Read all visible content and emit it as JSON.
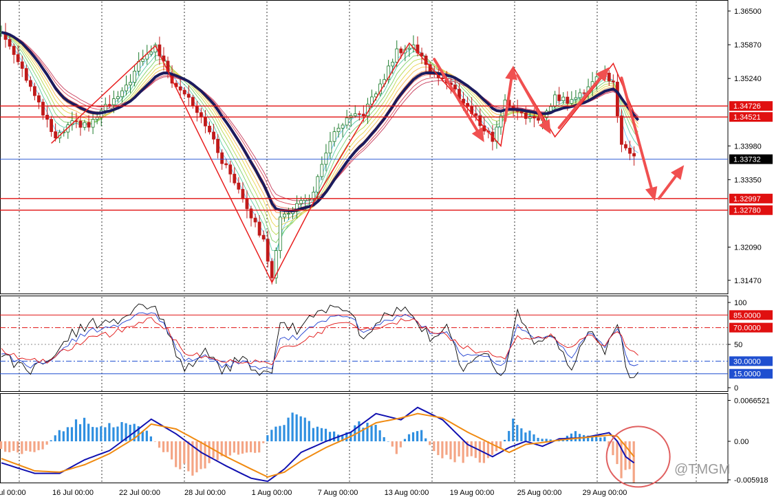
{
  "watermark": "@TMGM",
  "colors": {
    "background": "#ffffff",
    "grid": "#000000",
    "level_line": "#e01010",
    "current_price_line": "#1f4fd0",
    "bull_candle": "#1a7a2a",
    "bear_candle": "#c01a1a",
    "slow_ma": "#1b1b5e",
    "arrow": "#f05050",
    "stoch_main": "#000000",
    "stoch_blue": "#1f3fd0",
    "stoch_red": "#e01010",
    "macd_pos": "#2f8fe0",
    "macd_neg": "#f4a585",
    "macd_line": "#1010b0",
    "signal_line": "#f08a10",
    "circle": "#e06060",
    "badge_red": "#e01010",
    "badge_blue": "#1f4fd0",
    "badge_black": "#000000"
  },
  "chart_data": [
    {
      "panel": "price",
      "type": "candlestick",
      "x_ticks": [
        "ul 00:00",
        "16 Jul 00:00",
        "22 Jul 00:00",
        "28 Jul 00:00",
        "1 Aug 00:00",
        "7 Aug 00:00",
        "13 Aug 00:00",
        "19 Aug 00:00",
        "25 Aug 00:00",
        "29 Aug 00:00"
      ],
      "y_ticks": [
        1.365,
        1.3587,
        1.3524,
        1.3398,
        1.3335,
        1.3209,
        1.3147
      ],
      "y_tick_labels": [
        "1.36500",
        "1.35870",
        "1.35240",
        "1.33980",
        "1.33350",
        "1.32090",
        "1.31470"
      ],
      "ylim": [
        1.3121,
        1.3668
      ],
      "levels": [
        {
          "label": "1.34726",
          "value": 1.34726,
          "style": "badge_red"
        },
        {
          "label": "1.34521",
          "value": 1.34521,
          "style": "badge_red"
        },
        {
          "label": "1.32997",
          "value": 1.32997,
          "style": "badge_red"
        },
        {
          "label": "1.32780",
          "value": 1.3278,
          "style": "badge_red"
        }
      ],
      "current_price": {
        "label": "1.33732",
        "value": 1.33732
      },
      "close_path": [
        [
          0,
          1.361
        ],
        [
          4,
          1.356
        ],
        [
          8,
          1.349
        ],
        [
          13,
          1.341
        ],
        [
          17,
          1.344
        ],
        [
          21,
          1.3435
        ],
        [
          25,
          1.347
        ],
        [
          29,
          1.3495
        ],
        [
          33,
          1.355
        ],
        [
          37,
          1.3585
        ],
        [
          41,
          1.352
        ],
        [
          45,
          1.349
        ],
        [
          49,
          1.344
        ],
        [
          53,
          1.337
        ],
        [
          57,
          1.332
        ],
        [
          61,
          1.325
        ],
        [
          63,
          1.322
        ],
        [
          65,
          1.3155
        ],
        [
          67,
          1.326
        ],
        [
          71,
          1.3288
        ],
        [
          75,
          1.331
        ],
        [
          79,
          1.341
        ],
        [
          83,
          1.3445
        ],
        [
          87,
          1.346
        ],
        [
          91,
          1.351
        ],
        [
          95,
          1.3575
        ],
        [
          99,
          1.3585
        ],
        [
          103,
          1.354
        ],
        [
          108,
          1.351
        ],
        [
          113,
          1.346
        ],
        [
          118,
          1.341
        ],
        [
          121,
          1.348
        ],
        [
          125,
          1.346
        ],
        [
          129,
          1.344
        ],
        [
          133,
          1.349
        ],
        [
          137,
          1.348
        ],
        [
          141,
          1.351
        ],
        [
          144,
          1.3535
        ],
        [
          147,
          1.352
        ],
        [
          149,
          1.3395
        ],
        [
          151,
          1.3385
        ]
      ],
      "zigzag": [
        [
          12,
          1.3403
        ],
        [
          37,
          1.3585
        ],
        [
          65,
          1.3143
        ],
        [
          75,
          1.3293
        ],
        [
          98,
          1.359
        ],
        [
          120,
          1.3398
        ],
        [
          123,
          1.3545
        ],
        [
          133,
          1.3415
        ],
        [
          147,
          1.3552
        ],
        [
          152,
          1.346
        ]
      ],
      "arrows": [
        {
          "from": [
            104,
            1.356
          ],
          "to": [
            116,
            1.3405
          ]
        },
        {
          "from": [
            121,
            1.3445
          ],
          "to": [
            123,
            1.3548
          ]
        },
        {
          "from": [
            124,
            1.353
          ],
          "to": [
            132,
            1.342
          ]
        },
        {
          "from": [
            134,
            1.3432
          ],
          "to": [
            146,
            1.3545
          ]
        },
        {
          "from": [
            149,
            1.3525
          ],
          "to": [
            157,
            1.3295
          ]
        },
        {
          "from": [
            158,
            1.33
          ],
          "to": [
            164,
            1.3362
          ]
        }
      ]
    },
    {
      "panel": "oscillator",
      "type": "line",
      "ylim": [
        0,
        100
      ],
      "y_tick_labels": [
        "100",
        "50",
        "0"
      ],
      "levels": [
        {
          "label": "85.0000",
          "value": 85,
          "style": "badge_red"
        },
        {
          "label": "70.0000",
          "value": 70,
          "style": "badge_red"
        },
        {
          "label": "30.0000",
          "value": 30,
          "style": "badge_blue"
        },
        {
          "label": "15.0000",
          "value": 15,
          "style": "badge_blue"
        }
      ],
      "series": [
        {
          "role": "stoch_main",
          "values": [
            [
              0,
              38
            ],
            [
              6,
              18
            ],
            [
              11,
              33
            ],
            [
              16,
              58
            ],
            [
              21,
              75
            ],
            [
              26,
              72
            ],
            [
              31,
              90
            ],
            [
              36,
              99
            ],
            [
              39,
              76
            ],
            [
              44,
              18
            ],
            [
              49,
              42
            ],
            [
              53,
              14
            ],
            [
              57,
              36
            ],
            [
              61,
              20
            ],
            [
              65,
              14
            ],
            [
              67,
              72
            ],
            [
              72,
              68
            ],
            [
              76,
              88
            ],
            [
              81,
              95
            ],
            [
              85,
              83
            ],
            [
              87,
              52
            ],
            [
              92,
              82
            ],
            [
              96,
              96
            ],
            [
              99,
              88
            ],
            [
              103,
              56
            ],
            [
              107,
              68
            ],
            [
              111,
              18
            ],
            [
              116,
              36
            ],
            [
              121,
              14
            ],
            [
              124,
              88
            ],
            [
              128,
              52
            ],
            [
              132,
              66
            ],
            [
              137,
              20
            ],
            [
              141,
              70
            ],
            [
              145,
              38
            ],
            [
              148,
              80
            ],
            [
              150,
              28
            ],
            [
              151,
              14
            ],
            [
              153,
              17
            ]
          ]
        },
        {
          "role": "stoch_blue",
          "values": [
            [
              0,
              40
            ],
            [
              6,
              24
            ],
            [
              11,
              30
            ],
            [
              16,
              50
            ],
            [
              21,
              66
            ],
            [
              26,
              68
            ],
            [
              31,
              82
            ],
            [
              36,
              90
            ],
            [
              39,
              74
            ],
            [
              44,
              30
            ],
            [
              49,
              36
            ],
            [
              53,
              22
            ],
            [
              57,
              30
            ],
            [
              61,
              24
            ],
            [
              65,
              20
            ],
            [
              67,
              55
            ],
            [
              72,
              60
            ],
            [
              76,
              75
            ],
            [
              81,
              85
            ],
            [
              85,
              80
            ],
            [
              87,
              62
            ],
            [
              92,
              76
            ],
            [
              96,
              86
            ],
            [
              99,
              84
            ],
            [
              103,
              64
            ],
            [
              107,
              62
            ],
            [
              111,
              36
            ],
            [
              116,
              34
            ],
            [
              121,
              26
            ],
            [
              124,
              72
            ],
            [
              128,
              58
            ],
            [
              132,
              62
            ],
            [
              137,
              34
            ],
            [
              141,
              66
            ],
            [
              145,
              46
            ],
            [
              148,
              72
            ],
            [
              150,
              40
            ],
            [
              151,
              28
            ],
            [
              153,
              26
            ]
          ]
        },
        {
          "role": "stoch_red",
          "values": [
            [
              0,
              42
            ],
            [
              6,
              30
            ],
            [
              11,
              30
            ],
            [
              16,
              44
            ],
            [
              21,
              58
            ],
            [
              26,
              62
            ],
            [
              31,
              72
            ],
            [
              36,
              80
            ],
            [
              39,
              72
            ],
            [
              44,
              40
            ],
            [
              49,
              36
            ],
            [
              53,
              28
            ],
            [
              57,
              30
            ],
            [
              61,
              28
            ],
            [
              65,
              26
            ],
            [
              67,
              44
            ],
            [
              72,
              54
            ],
            [
              76,
              64
            ],
            [
              81,
              74
            ],
            [
              85,
              74
            ],
            [
              87,
              66
            ],
            [
              92,
              70
            ],
            [
              96,
              78
            ],
            [
              99,
              78
            ],
            [
              103,
              66
            ],
            [
              107,
              60
            ],
            [
              111,
              46
            ],
            [
              116,
              40
            ],
            [
              121,
              34
            ],
            [
              124,
              60
            ],
            [
              128,
              58
            ],
            [
              132,
              60
            ],
            [
              137,
              44
            ],
            [
              141,
              62
            ],
            [
              145,
              50
            ],
            [
              148,
              66
            ],
            [
              150,
              50
            ],
            [
              151,
              42
            ],
            [
              153,
              40
            ]
          ]
        }
      ]
    },
    {
      "panel": "macd",
      "type": "bar+line",
      "ylim": [
        -0.0065,
        0.0067
      ],
      "y_tick_labels": [
        "0.0066521",
        "0.00",
        "-0.005918"
      ],
      "histogram": [
        [
          0,
          -0.0015
        ],
        [
          5,
          -0.002
        ],
        [
          10,
          -0.0012
        ],
        [
          14,
          0.0016
        ],
        [
          19,
          0.0034
        ],
        [
          25,
          0.0028
        ],
        [
          30,
          0.0028
        ],
        [
          35,
          0.0018
        ],
        [
          38,
          -0.001
        ],
        [
          42,
          -0.0035
        ],
        [
          46,
          -0.0048
        ],
        [
          50,
          -0.0035
        ],
        [
          54,
          -0.0022
        ],
        [
          58,
          -0.0018
        ],
        [
          62,
          -0.0018
        ],
        [
          64,
          0.0012
        ],
        [
          66,
          0.0028
        ],
        [
          70,
          0.0042
        ],
        [
          74,
          0.003
        ],
        [
          78,
          0.0018
        ],
        [
          82,
          0.001
        ],
        [
          86,
          0.0028
        ],
        [
          90,
          0.0025
        ],
        [
          93,
          0.0
        ],
        [
          95,
          -0.002
        ],
        [
          98,
          0.0015
        ],
        [
          101,
          0.0018
        ],
        [
          104,
          -0.0018
        ],
        [
          108,
          -0.003
        ],
        [
          113,
          -0.0032
        ],
        [
          117,
          -0.003
        ],
        [
          120,
          -0.0012
        ],
        [
          123,
          0.0032
        ],
        [
          126,
          0.0018
        ],
        [
          130,
          0.0004
        ],
        [
          134,
          0.0002
        ],
        [
          138,
          0.0014
        ],
        [
          142,
          0.001
        ],
        [
          145,
          0.0006
        ],
        [
          147,
          -0.002
        ],
        [
          149,
          -0.0055
        ],
        [
          152,
          -0.0058
        ]
      ],
      "macd_line": [
        [
          0,
          -0.0035
        ],
        [
          8,
          -0.0052
        ],
        [
          14,
          -0.0052
        ],
        [
          20,
          -0.003
        ],
        [
          26,
          -0.0015
        ],
        [
          32,
          0.0015
        ],
        [
          36,
          0.0036
        ],
        [
          42,
          0.0012
        ],
        [
          48,
          -0.0018
        ],
        [
          54,
          -0.004
        ],
        [
          60,
          -0.006
        ],
        [
          64,
          -0.0065
        ],
        [
          68,
          -0.0045
        ],
        [
          72,
          -0.0018
        ],
        [
          78,
          0.0
        ],
        [
          84,
          0.0015
        ],
        [
          90,
          0.0045
        ],
        [
          96,
          0.0035
        ],
        [
          100,
          0.0055
        ],
        [
          106,
          0.0035
        ],
        [
          112,
          -0.0005
        ],
        [
          118,
          -0.0025
        ],
        [
          122,
          -0.001
        ],
        [
          126,
          0.0
        ],
        [
          130,
          -0.0008
        ],
        [
          134,
          0.0004
        ],
        [
          140,
          0.0006
        ],
        [
          146,
          0.0014
        ],
        [
          148,
          0.0
        ],
        [
          150,
          -0.0025
        ],
        [
          152,
          -0.0035
        ]
      ],
      "signal_line": [
        [
          0,
          -0.0028
        ],
        [
          8,
          -0.0048
        ],
        [
          14,
          -0.005
        ],
        [
          20,
          -0.0038
        ],
        [
          26,
          -0.002
        ],
        [
          32,
          0.0005
        ],
        [
          36,
          0.0028
        ],
        [
          42,
          0.002
        ],
        [
          48,
          -0.0002
        ],
        [
          54,
          -0.0025
        ],
        [
          60,
          -0.0045
        ],
        [
          64,
          -0.0058
        ],
        [
          68,
          -0.005
        ],
        [
          72,
          -0.0032
        ],
        [
          78,
          -0.001
        ],
        [
          84,
          0.0008
        ],
        [
          90,
          0.003
        ],
        [
          96,
          0.0038
        ],
        [
          100,
          0.0045
        ],
        [
          106,
          0.0038
        ],
        [
          112,
          0.0015
        ],
        [
          118,
          -0.0005
        ],
        [
          122,
          -0.0018
        ],
        [
          126,
          -0.0005
        ],
        [
          130,
          -0.0002
        ],
        [
          134,
          0.0002
        ],
        [
          140,
          0.0006
        ],
        [
          146,
          0.001
        ],
        [
          148,
          0.0008
        ],
        [
          150,
          -0.0008
        ],
        [
          152,
          -0.0025
        ]
      ],
      "highlight_circle_center": [
        153,
        -0.0025
      ]
    }
  ]
}
